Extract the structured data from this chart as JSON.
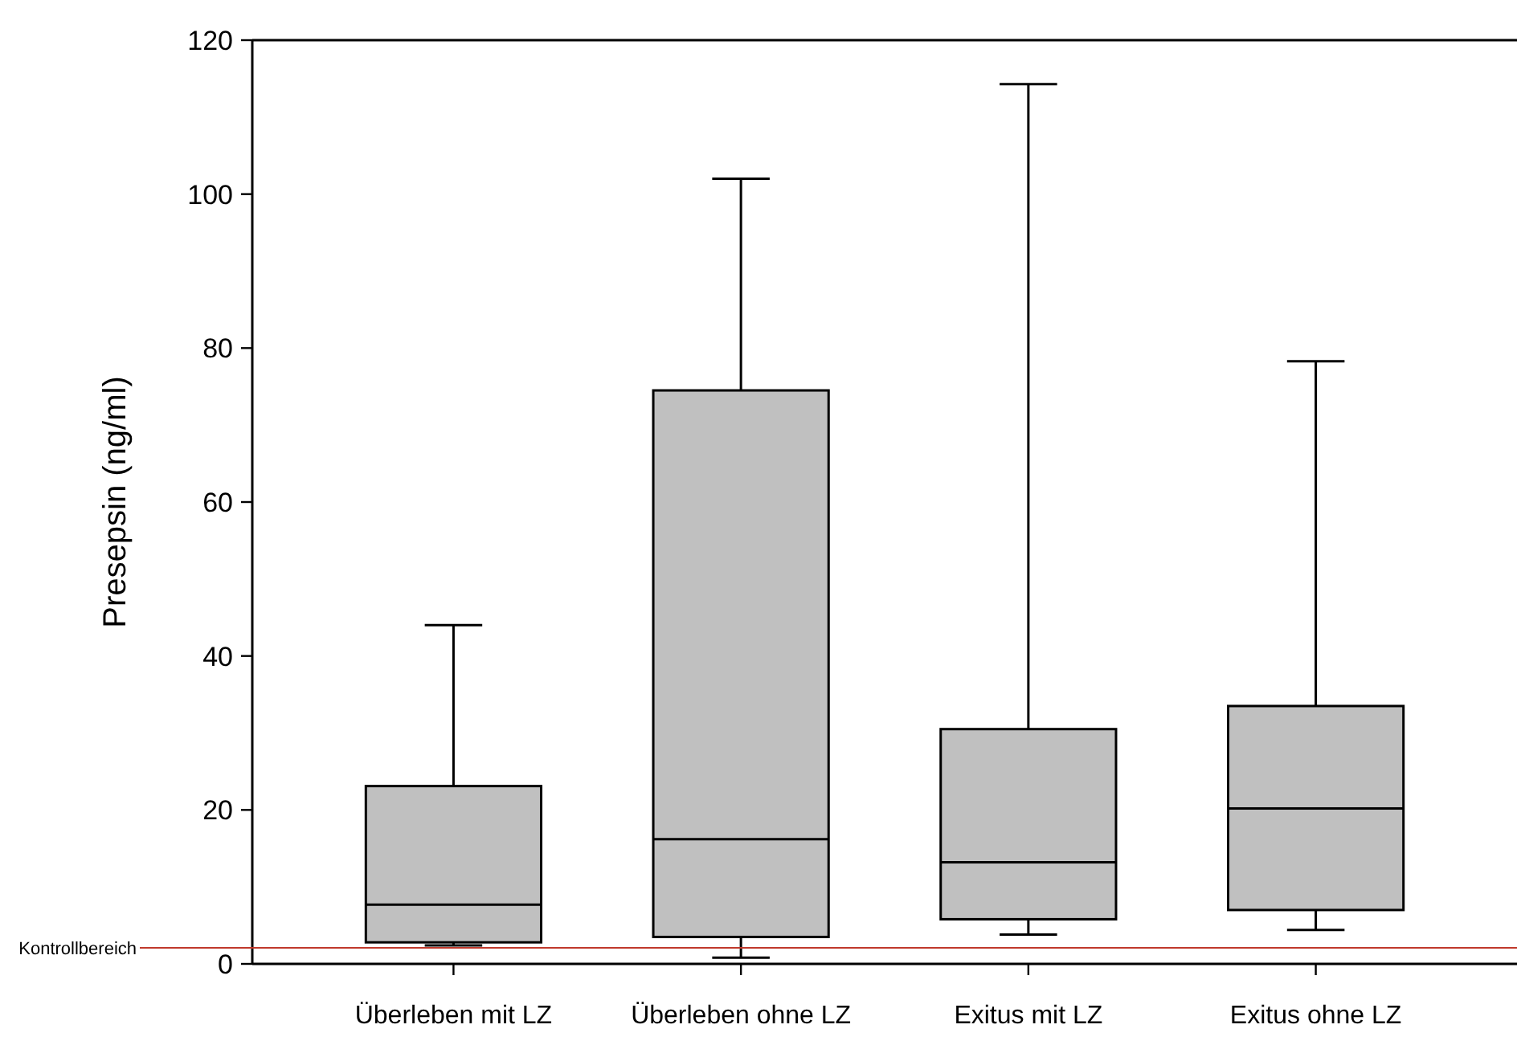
{
  "chart_data": {
    "type": "box",
    "ylabel": "Presepsin (ng/ml)",
    "categories": [
      "Überleben mit LZ",
      "Überleben ohne LZ",
      "Exitus mit LZ",
      "Exitus ohne LZ"
    ],
    "boxes": [
      {
        "low": 2.4,
        "q1": 2.8,
        "median": 7.7,
        "q3": 23.1,
        "high": 44
      },
      {
        "low": 0.8,
        "q1": 3.5,
        "median": 16.2,
        "q3": 74.5,
        "high": 102
      },
      {
        "low": 3.8,
        "q1": 5.8,
        "median": 13.2,
        "q3": 30.5,
        "high": 114.3
      },
      {
        "low": 4.4,
        "q1": 7,
        "median": 20.2,
        "q3": 33.5,
        "high": 78.3
      }
    ],
    "color": "#c0c0c0",
    "ylim": [
      0,
      120
    ],
    "yticks": [
      0,
      20,
      40,
      60,
      80,
      100,
      120
    ],
    "ref_lines": [
      {
        "axis": "y",
        "value": 2.1,
        "label": "Kontrollbereich",
        "color": "#c0392b"
      }
    ]
  }
}
